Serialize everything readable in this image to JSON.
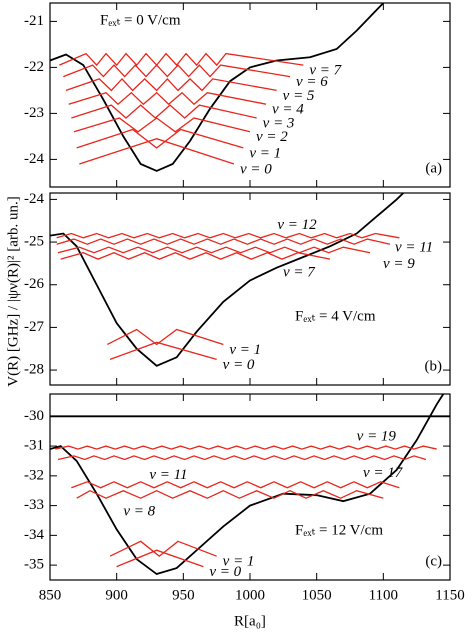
{
  "chart_data": [
    {
      "type": "line",
      "annotation": "Fₑₓₜ = 0 V/cm",
      "panel_label": "(a)",
      "xlim": [
        850,
        1150
      ],
      "xticks": [
        850,
        900,
        950,
        1000,
        1050,
        1100,
        1150
      ],
      "ylim": [
        -24.6,
        -20.6
      ],
      "yticks": [
        -24,
        -23,
        -22,
        -21
      ],
      "series": [
        {
          "color": "#000000",
          "x": [
            850,
            862,
            875,
            890,
            905,
            918,
            930,
            942,
            955,
            970,
            985,
            1000,
            1020,
            1045,
            1065,
            1080,
            1095,
            1100
          ],
          "values": [
            -21.85,
            -21.72,
            -21.95,
            -22.7,
            -23.5,
            -24.1,
            -24.25,
            -24.1,
            -23.6,
            -22.9,
            -22.3,
            -22.0,
            -21.85,
            -21.78,
            -21.6,
            -21.2,
            -20.75,
            -20.6
          ]
        },
        {
          "name": "ν = 0",
          "color": "#e8261c",
          "x": [
            872,
            930,
            988
          ],
          "values": [
            -24.1,
            -23.55,
            -24.1
          ]
        },
        {
          "name": "ν = 1",
          "color": "#e8261c",
          "x": [
            870,
            912,
            930,
            948,
            995
          ],
          "values": [
            -23.75,
            -23.35,
            -23.75,
            -23.35,
            -23.75
          ]
        },
        {
          "name": "ν = 2",
          "color": "#e8261c",
          "x": [
            868,
            902,
            916,
            930,
            944,
            958,
            1000
          ],
          "values": [
            -23.4,
            -23.1,
            -23.4,
            -23.1,
            -23.4,
            -23.1,
            -23.4
          ]
        },
        {
          "name": "ν = 3",
          "color": "#e8261c",
          "x": [
            866,
            896,
            907,
            918,
            929,
            940,
            951,
            962,
            1005
          ],
          "values": [
            -23.1,
            -22.82,
            -23.1,
            -22.82,
            -23.1,
            -22.82,
            -23.1,
            -22.82,
            -23.1
          ]
        },
        {
          "name": "ν = 4",
          "color": "#e8261c",
          "x": [
            864,
            892,
            901,
            911,
            920,
            930,
            939,
            949,
            958,
            968,
            1012
          ],
          "values": [
            -22.8,
            -22.55,
            -22.8,
            -22.55,
            -22.8,
            -22.55,
            -22.8,
            -22.55,
            -22.8,
            -22.55,
            -22.8
          ]
        },
        {
          "name": "ν = 5",
          "color": "#e8261c",
          "x": [
            862,
            887,
            896,
            904,
            912,
            921,
            930,
            938,
            946,
            955,
            964,
            972,
            1020
          ],
          "values": [
            -22.5,
            -22.25,
            -22.5,
            -22.25,
            -22.5,
            -22.25,
            -22.5,
            -22.25,
            -22.5,
            -22.25,
            -22.5,
            -22.25,
            -22.5
          ]
        },
        {
          "name": "ν = 6",
          "color": "#e8261c",
          "x": [
            860,
            882,
            890,
            898,
            906,
            914,
            922,
            930,
            938,
            946,
            954,
            962,
            970,
            978,
            1030
          ],
          "values": [
            -22.2,
            -21.95,
            -22.2,
            -21.95,
            -22.2,
            -21.95,
            -22.2,
            -21.95,
            -22.2,
            -21.95,
            -22.2,
            -21.95,
            -22.2,
            -21.95,
            -22.2
          ]
        },
        {
          "name": "ν = 7",
          "color": "#e8261c",
          "x": [
            857,
            877,
            885,
            892,
            900,
            907,
            915,
            922,
            930,
            937,
            945,
            952,
            960,
            967,
            975,
            982,
            1040
          ],
          "values": [
            -21.95,
            -21.7,
            -21.95,
            -21.7,
            -21.95,
            -21.7,
            -21.95,
            -21.7,
            -21.95,
            -21.7,
            -21.95,
            -21.7,
            -21.95,
            -21.7,
            -21.95,
            -21.7,
            -21.95
          ]
        }
      ]
    },
    {
      "type": "line",
      "annotation": "Fₑₓₜ = 4 V/cm",
      "panel_label": "(b)",
      "ylabel": "V(R) [GHz] / |ψν(R)|² [arb. un.]",
      "xlim": [
        850,
        1150
      ],
      "xticks": [
        850,
        900,
        950,
        1000,
        1050,
        1100,
        1150
      ],
      "ylim": [
        -28.35,
        -23.85
      ],
      "yticks": [
        -28,
        -27,
        -26,
        -25,
        -24
      ],
      "series": [
        {
          "color": "#000000",
          "x": [
            850,
            860,
            870,
            885,
            900,
            915,
            930,
            945,
            960,
            980,
            1000,
            1020,
            1040,
            1060,
            1080,
            1095,
            1110,
            1115
          ],
          "values": [
            -24.85,
            -24.8,
            -25.1,
            -26.0,
            -26.9,
            -27.5,
            -27.9,
            -27.7,
            -27.1,
            -26.4,
            -25.9,
            -25.6,
            -25.35,
            -25.1,
            -24.8,
            -24.4,
            -24.0,
            -23.85
          ]
        },
        {
          "name": "ν = 0",
          "color": "#e8261c",
          "x": [
            895,
            930,
            975
          ],
          "values": [
            -27.75,
            -27.35,
            -27.75
          ]
        },
        {
          "name": "ν = 1",
          "color": "#e8261c",
          "x": [
            893,
            915,
            930,
            945,
            980
          ],
          "values": [
            -27.4,
            -27.05,
            -27.4,
            -27.05,
            -27.4
          ]
        },
        {
          "name": "ν = 7",
          "color": "#e8261c",
          "x": [
            858,
            875,
            886,
            898,
            909,
            921,
            932,
            944,
            955,
            967,
            978,
            990,
            1001,
            1013,
            1024,
            1036,
            1060
          ],
          "values": [
            -25.4,
            -25.25,
            -25.4,
            -25.25,
            -25.4,
            -25.25,
            -25.4,
            -25.25,
            -25.4,
            -25.25,
            -25.4,
            -25.25,
            -25.4,
            -25.25,
            -25.4,
            -25.25,
            -25.4
          ]
        },
        {
          "name": "ν = 9",
          "color": "#e8261c",
          "x": [
            856,
            872,
            883,
            894,
            905,
            916,
            927,
            938,
            949,
            960,
            971,
            982,
            993,
            1004,
            1015,
            1026,
            1037,
            1048,
            1059,
            1070,
            1090
          ],
          "values": [
            -25.25,
            -25.12,
            -25.25,
            -25.12,
            -25.25,
            -25.12,
            -25.25,
            -25.12,
            -25.25,
            -25.12,
            -25.25,
            -25.12,
            -25.25,
            -25.12,
            -25.25,
            -25.12,
            -25.25,
            -25.12,
            -25.25,
            -25.12,
            -25.25
          ]
        },
        {
          "name": "ν = 11",
          "color": "#e8261c",
          "x": [
            855,
            868,
            878,
            888,
            898,
            908,
            918,
            928,
            938,
            948,
            958,
            968,
            978,
            988,
            998,
            1008,
            1018,
            1028,
            1038,
            1048,
            1058,
            1068,
            1078,
            1088,
            1105
          ],
          "values": [
            -25.05,
            -24.93,
            -25.05,
            -24.93,
            -25.05,
            -24.93,
            -25.05,
            -24.93,
            -25.05,
            -24.93,
            -25.05,
            -24.93,
            -25.05,
            -24.93,
            -25.05,
            -24.93,
            -25.05,
            -24.93,
            -25.05,
            -24.93,
            -25.05,
            -24.93,
            -25.05,
            -24.93,
            -25.05
          ]
        },
        {
          "name": "ν = 12",
          "color": "#e8261c",
          "x": [
            855,
            866,
            875,
            885,
            894,
            904,
            913,
            923,
            932,
            942,
            951,
            961,
            970,
            980,
            989,
            999,
            1008,
            1018,
            1027,
            1037,
            1046,
            1056,
            1065,
            1075,
            1084,
            1094,
            1112
          ],
          "values": [
            -24.9,
            -24.8,
            -24.9,
            -24.8,
            -24.9,
            -24.8,
            -24.9,
            -24.8,
            -24.9,
            -24.8,
            -24.9,
            -24.8,
            -24.9,
            -24.8,
            -24.9,
            -24.8,
            -24.9,
            -24.8,
            -24.9,
            -24.8,
            -24.9,
            -24.8,
            -24.9,
            -24.8,
            -24.9,
            -24.8,
            -24.9
          ]
        }
      ]
    },
    {
      "type": "line",
      "annotation": "Fₑₓₜ = 12 V/cm",
      "panel_label": "(c)",
      "xlabel": "R[a₀]",
      "xlim": [
        850,
        1150
      ],
      "xticks": [
        850,
        900,
        950,
        1000,
        1050,
        1100,
        1150
      ],
      "ylim": [
        -35.5,
        -29.25
      ],
      "yticks": [
        -35,
        -34,
        -33,
        -32,
        -31,
        -30
      ],
      "series": [
        {
          "color": "#000000",
          "x": [
            850,
            858,
            870,
            885,
            900,
            915,
            930,
            945,
            960,
            980,
            1000,
            1025,
            1050,
            1070,
            1090,
            1110,
            1125,
            1140,
            1145
          ],
          "values": [
            -31.1,
            -31.0,
            -31.5,
            -32.6,
            -33.8,
            -34.8,
            -35.3,
            -35.1,
            -34.5,
            -33.7,
            -33.0,
            -32.6,
            -32.65,
            -32.85,
            -32.6,
            -31.8,
            -30.8,
            -29.6,
            -29.25
          ]
        },
        {
          "color": "#000000",
          "x": [
            850,
            1150
          ],
          "values": [
            -30,
            -30
          ]
        },
        {
          "name": "ν = 0",
          "color": "#e8261c",
          "x": [
            900,
            930,
            965
          ],
          "values": [
            -35.05,
            -34.5,
            -35.05
          ]
        },
        {
          "name": "ν = 1",
          "color": "#e8261c",
          "x": [
            895,
            918,
            932,
            946,
            975
          ],
          "values": [
            -34.7,
            -34.2,
            -34.7,
            -34.2,
            -34.7
          ]
        },
        {
          "name": "ν = 8",
          "color": "#e8261c",
          "x": [
            870,
            880,
            892,
            905,
            918,
            930,
            942,
            955,
            968,
            980,
            992,
            1005,
            1018,
            1030,
            1042,
            1055,
            1068,
            1080,
            1100
          ],
          "values": [
            -32.75,
            -32.5,
            -32.75,
            -32.5,
            -32.75,
            -32.5,
            -32.75,
            -32.5,
            -32.75,
            -32.5,
            -32.75,
            -32.5,
            -32.75,
            -32.5,
            -32.75,
            -32.5,
            -32.75,
            -32.5,
            -32.75
          ]
        },
        {
          "name": "ν = 11",
          "color": "#e8261c",
          "x": [
            866,
            878,
            888,
            898,
            908,
            918,
            928,
            938,
            948,
            958,
            968,
            978,
            988,
            998,
            1008,
            1018,
            1028,
            1038,
            1048,
            1058,
            1068,
            1078,
            1088,
            1098,
            1112
          ],
          "values": [
            -32.4,
            -32.2,
            -32.4,
            -32.2,
            -32.4,
            -32.2,
            -32.4,
            -32.2,
            -32.4,
            -32.2,
            -32.4,
            -32.2,
            -32.4,
            -32.2,
            -32.4,
            -32.2,
            -32.4,
            -32.2,
            -32.4,
            -32.2,
            -32.4,
            -32.2,
            -32.4,
            -32.2,
            -32.4
          ]
        },
        {
          "name": "ν = 17",
          "color": "#e8261c",
          "x": [
            856,
            868,
            876,
            883,
            891,
            898,
            906,
            913,
            921,
            928,
            936,
            943,
            951,
            958,
            966,
            973,
            981,
            988,
            996,
            1003,
            1011,
            1018,
            1026,
            1033,
            1041,
            1048,
            1056,
            1063,
            1071,
            1078,
            1086,
            1093,
            1101,
            1108,
            1116,
            1123,
            1132
          ],
          "values": [
            -31.45,
            -31.33,
            -31.45,
            -31.33,
            -31.45,
            -31.33,
            -31.45,
            -31.33,
            -31.45,
            -31.33,
            -31.45,
            -31.33,
            -31.45,
            -31.33,
            -31.45,
            -31.33,
            -31.45,
            -31.33,
            -31.45,
            -31.33,
            -31.45,
            -31.33,
            -31.45,
            -31.33,
            -31.45,
            -31.33,
            -31.45,
            -31.33,
            -31.45,
            -31.33,
            -31.45,
            -31.33,
            -31.45,
            -31.33,
            -31.45,
            -31.33,
            -31.45
          ]
        },
        {
          "name": "ν = 19",
          "color": "#e8261c",
          "x": [
            854,
            864,
            871,
            878,
            885,
            892,
            899,
            906,
            913,
            920,
            927,
            934,
            941,
            948,
            955,
            962,
            969,
            976,
            983,
            990,
            997,
            1004,
            1011,
            1018,
            1025,
            1032,
            1039,
            1046,
            1053,
            1060,
            1067,
            1074,
            1081,
            1088,
            1095,
            1102,
            1109,
            1116,
            1123,
            1130,
            1140
          ],
          "values": [
            -31.1,
            -31.0,
            -31.1,
            -31.0,
            -31.1,
            -31.0,
            -31.1,
            -31.0,
            -31.1,
            -31.0,
            -31.1,
            -31.0,
            -31.1,
            -31.0,
            -31.1,
            -31.0,
            -31.1,
            -31.0,
            -31.1,
            -31.0,
            -31.1,
            -31.0,
            -31.1,
            -31.0,
            -31.1,
            -31.0,
            -31.1,
            -31.0,
            -31.1,
            -31.0,
            -31.1,
            -31.0,
            -31.1,
            -31.0,
            -31.1,
            -31.0,
            -31.1,
            -31.0,
            -31.1,
            -31.0,
            -31.1
          ]
        }
      ]
    }
  ]
}
